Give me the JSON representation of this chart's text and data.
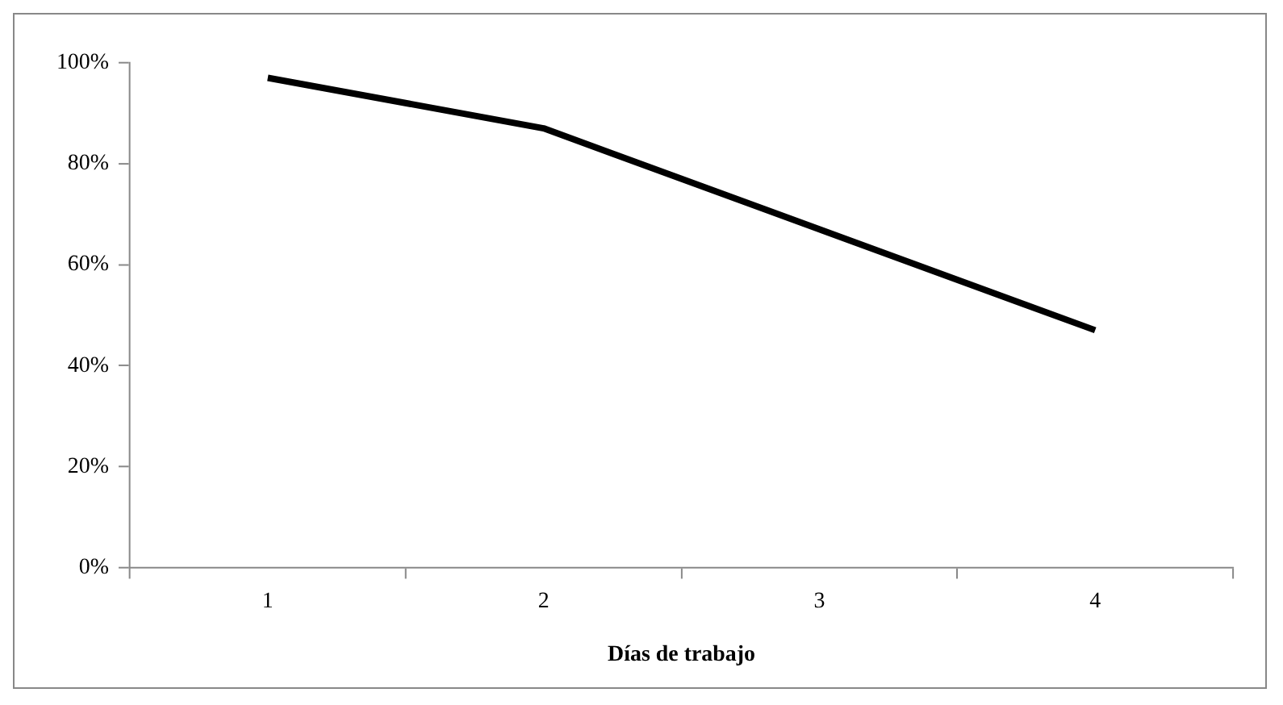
{
  "chart_data": {
    "type": "line",
    "xlabel": "Días de trabajo",
    "categories": [
      "1",
      "2",
      "3",
      "4"
    ],
    "series": [
      {
        "color": "#000000",
        "values": [
          97,
          87,
          67,
          47
        ]
      }
    ],
    "ylim": [
      0,
      100
    ],
    "yticks": [
      {
        "value": 0,
        "label": "0%"
      },
      {
        "value": 20,
        "label": "20%"
      },
      {
        "value": 40,
        "label": "40%"
      },
      {
        "value": 60,
        "label": "60%"
      },
      {
        "value": 80,
        "label": "80%"
      },
      {
        "value": 100,
        "label": "100%"
      }
    ],
    "grid": false,
    "legend": false,
    "marker": "none",
    "line_style": "solid"
  }
}
